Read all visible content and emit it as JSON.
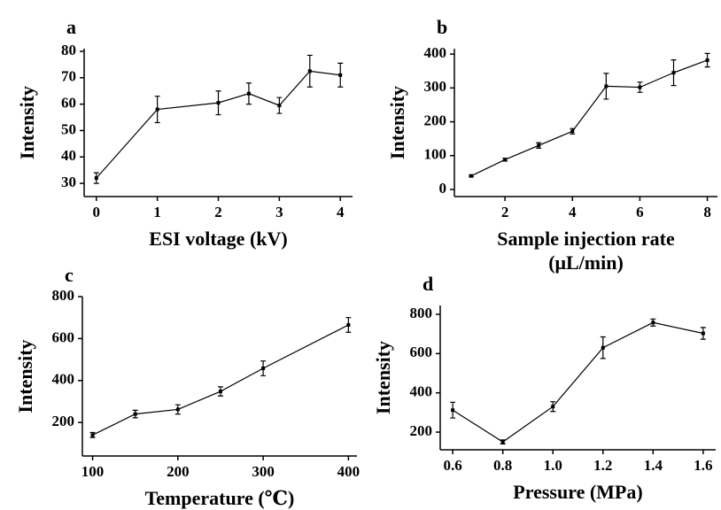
{
  "chart_data": [
    {
      "type": "line",
      "panel_label": "a",
      "ylabel": "Intensity",
      "xlabel": [
        "ESI voltage (kV)"
      ],
      "x": [
        0,
        1,
        2,
        2.5,
        3,
        3.5,
        4
      ],
      "series": [
        {
          "color": "#000000",
          "values": [
            32,
            58,
            60.5,
            64,
            59.5,
            72.5,
            71
          ],
          "errors": [
            2,
            5,
            4.5,
            4,
            3,
            6,
            4.5
          ]
        }
      ],
      "xlim": [
        -0.2,
        4.2
      ],
      "xticks": [
        0,
        1,
        2,
        3,
        4
      ],
      "ylim": [
        25,
        81
      ],
      "yticks": [
        30,
        40,
        50,
        60,
        70,
        80
      ]
    },
    {
      "type": "line",
      "panel_label": "b",
      "ylabel": "Intensity",
      "xlabel": [
        "Sample injection rate",
        "(μL/min)"
      ],
      "x": [
        1,
        2,
        3,
        4,
        5,
        6,
        7,
        8
      ],
      "series": [
        {
          "color": "#000000",
          "values": [
            40,
            88,
            130,
            172,
            305,
            302,
            345,
            382
          ],
          "errors": [
            3,
            4,
            8,
            8,
            38,
            15,
            38,
            20
          ]
        }
      ],
      "xlim": [
        0.5,
        8.3
      ],
      "xticks": [
        2,
        4,
        6,
        8
      ],
      "ylim": [
        -21,
        416
      ],
      "yticks": [
        0,
        100,
        200,
        300,
        400
      ]
    },
    {
      "type": "line",
      "panel_label": "c",
      "ylabel": "Intensity",
      "xlabel": [
        "Temperature (℃)"
      ],
      "x": [
        100,
        150,
        200,
        250,
        300,
        400
      ],
      "series": [
        {
          "color": "#000000",
          "values": [
            140,
            240,
            262,
            348,
            458,
            665
          ],
          "errors": [
            12,
            18,
            22,
            22,
            35,
            35
          ]
        }
      ],
      "xlim": [
        88,
        410
      ],
      "xticks": [
        100,
        200,
        300,
        400
      ],
      "ylim": [
        40,
        800
      ],
      "yticks": [
        200,
        400,
        600,
        800
      ]
    },
    {
      "type": "line",
      "panel_label": "d",
      "ylabel": "Intensity",
      "xlabel": [
        "Pressure (MPa)"
      ],
      "x": [
        0.6,
        0.8,
        1.0,
        1.2,
        1.4,
        1.6
      ],
      "series": [
        {
          "color": "#000000",
          "values": [
            312,
            150,
            330,
            630,
            758,
            703
          ],
          "errors": [
            40,
            10,
            25,
            55,
            18,
            30
          ]
        }
      ],
      "xlim": [
        0.55,
        1.65
      ],
      "xticks": [
        0.6,
        0.8,
        {
          "value": 1,
          "label": "1.0"
        },
        1.2,
        1.4,
        1.6
      ],
      "ylim": [
        110,
        845
      ],
      "yticks": [
        200,
        400,
        600,
        800
      ]
    }
  ]
}
